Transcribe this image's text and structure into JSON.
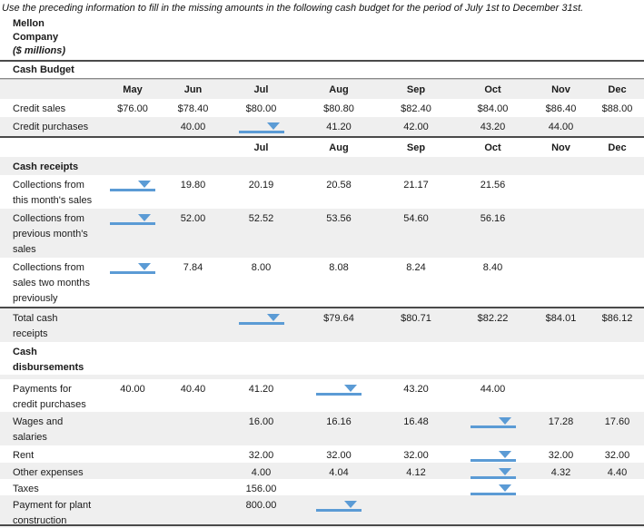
{
  "instruction": "Use the preceding information to fill in the missing amounts in the following cash budget for the period of July 1st to December 31st.",
  "company": {
    "line1": "Mellon",
    "line2": "Company",
    "line3": "($ millions)"
  },
  "budget_title": "Cash Budget",
  "colors": {
    "dropdown_blue": "#5b9bd5",
    "row_shade": "#efefef",
    "rule_dark": "#4a4a4a"
  },
  "icons": {
    "dropdown_arrow": "chevron-down-icon"
  },
  "table": {
    "rows": [
      {
        "type": "columns",
        "label": "",
        "cells": [
          "May",
          "Jun",
          "Jul",
          "Aug",
          "Sep",
          "Oct",
          "Nov",
          "Dec"
        ]
      },
      {
        "type": "data",
        "label": "Credit sales",
        "cells": [
          "$76.00",
          "$78.40",
          "$80.00",
          "$80.80",
          "$82.40",
          "$84.00",
          "$86.40",
          "$88.00"
        ]
      },
      {
        "type": "data",
        "label": "Credit purchases",
        "cells": [
          "",
          "40.00",
          "[dropdown]",
          "41.20",
          "42.00",
          "43.20",
          "44.00",
          ""
        ]
      },
      {
        "type": "columns",
        "label": "",
        "cells": [
          "",
          "",
          "Jul",
          "Aug",
          "Sep",
          "Oct",
          "Nov",
          "Dec"
        ]
      },
      {
        "type": "section",
        "label": "Cash receipts",
        "cells": [
          "",
          "",
          "",
          "",
          "",
          "",
          "",
          ""
        ]
      },
      {
        "type": "data",
        "label": "Collections from this month's sales",
        "cells": [
          "[dropdown]",
          "19.80",
          "20.19",
          "20.58",
          "21.17",
          "21.56",
          "",
          ""
        ]
      },
      {
        "type": "data",
        "label": "Collections from previous month's sales",
        "cells": [
          "[dropdown]",
          "52.00",
          "52.52",
          "53.56",
          "54.60",
          "56.16",
          "",
          ""
        ]
      },
      {
        "type": "data",
        "label": "Collections from sales two months previously",
        "cells": [
          "[dropdown]",
          "7.84",
          "8.00",
          "8.08",
          "8.24",
          "8.40",
          "",
          ""
        ]
      },
      {
        "type": "data",
        "label": "Total cash receipts",
        "cells": [
          "",
          "",
          "[dropdown]",
          "$79.64",
          "$80.71",
          "$82.22",
          "$84.01",
          "$86.12"
        ]
      },
      {
        "type": "section",
        "label": "Cash disbursements",
        "cells": [
          "",
          "",
          "",
          "",
          "",
          "",
          "",
          ""
        ]
      },
      {
        "type": "spacer",
        "label": "",
        "cells": [
          "",
          "",
          "",
          "",
          "",
          "",
          "",
          ""
        ]
      },
      {
        "type": "data",
        "label": "Payments for credit purchases",
        "cells": [
          "40.00",
          "40.40",
          "41.20",
          "[dropdown]",
          "43.20",
          "44.00",
          "",
          ""
        ]
      },
      {
        "type": "data",
        "label": "Wages and salaries",
        "cells": [
          "",
          "",
          "16.00",
          "16.16",
          "16.48",
          "[dropdown]",
          "17.28",
          "17.60"
        ]
      },
      {
        "type": "data",
        "label": "Rent",
        "cells": [
          "",
          "",
          "32.00",
          "32.00",
          "32.00",
          "[dropdown]",
          "32.00",
          "32.00"
        ]
      },
      {
        "type": "data",
        "label": "Other expenses",
        "cells": [
          "",
          "",
          "4.00",
          "4.04",
          "4.12",
          "[dropdown]",
          "4.32",
          "4.40"
        ]
      },
      {
        "type": "data",
        "label": "Taxes",
        "cells": [
          "",
          "",
          "156.00",
          "",
          "",
          "[dropdown]",
          "",
          ""
        ]
      },
      {
        "type": "data",
        "label": "Payment for plant construction",
        "cells": [
          "",
          "",
          "800.00",
          "[dropdown]",
          "",
          "",
          "",
          ""
        ]
      }
    ]
  }
}
